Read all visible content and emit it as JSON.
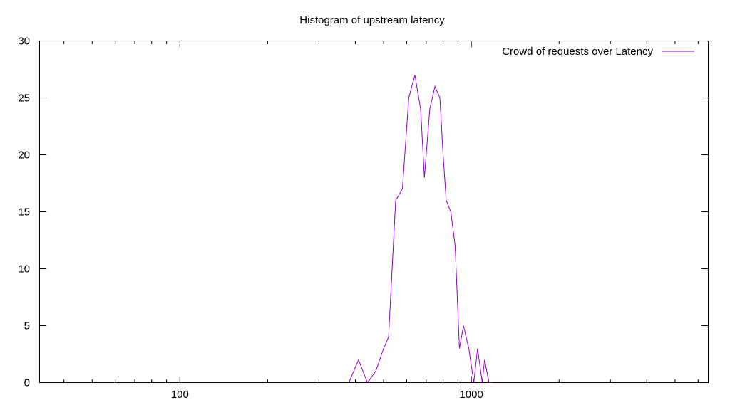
{
  "chart_data": {
    "type": "line",
    "title": "Histogram of upstream latency",
    "xlabel": "",
    "ylabel": "",
    "x_scale": "log",
    "xlim": [
      33,
      6500
    ],
    "ylim": [
      0,
      30
    ],
    "x_ticks": [
      {
        "value": 100,
        "label": "100"
      },
      {
        "value": 1000,
        "label": "1000"
      }
    ],
    "y_ticks": [
      {
        "value": 0,
        "label": "0"
      },
      {
        "value": 5,
        "label": "5"
      },
      {
        "value": 10,
        "label": "10"
      },
      {
        "value": 15,
        "label": "15"
      },
      {
        "value": 20,
        "label": "20"
      },
      {
        "value": 25,
        "label": "25"
      },
      {
        "value": 30,
        "label": "30"
      }
    ],
    "grid": false,
    "legend_position": "top-right",
    "series": [
      {
        "name": "Crowd of requests over Latency",
        "color": "#9400d3",
        "x": [
          380,
          410,
          440,
          470,
          500,
          520,
          550,
          580,
          610,
          640,
          670,
          690,
          720,
          750,
          780,
          800,
          820,
          850,
          880,
          910,
          940,
          980,
          1020,
          1050,
          1090,
          1110,
          1150,
          1180
        ],
        "y": [
          0,
          2,
          0,
          1,
          3,
          4,
          16,
          17,
          25,
          27,
          24,
          18,
          24,
          26,
          25,
          20,
          16,
          15,
          12,
          3,
          5,
          3,
          0,
          3,
          0,
          2,
          0,
          0
        ]
      }
    ]
  }
}
